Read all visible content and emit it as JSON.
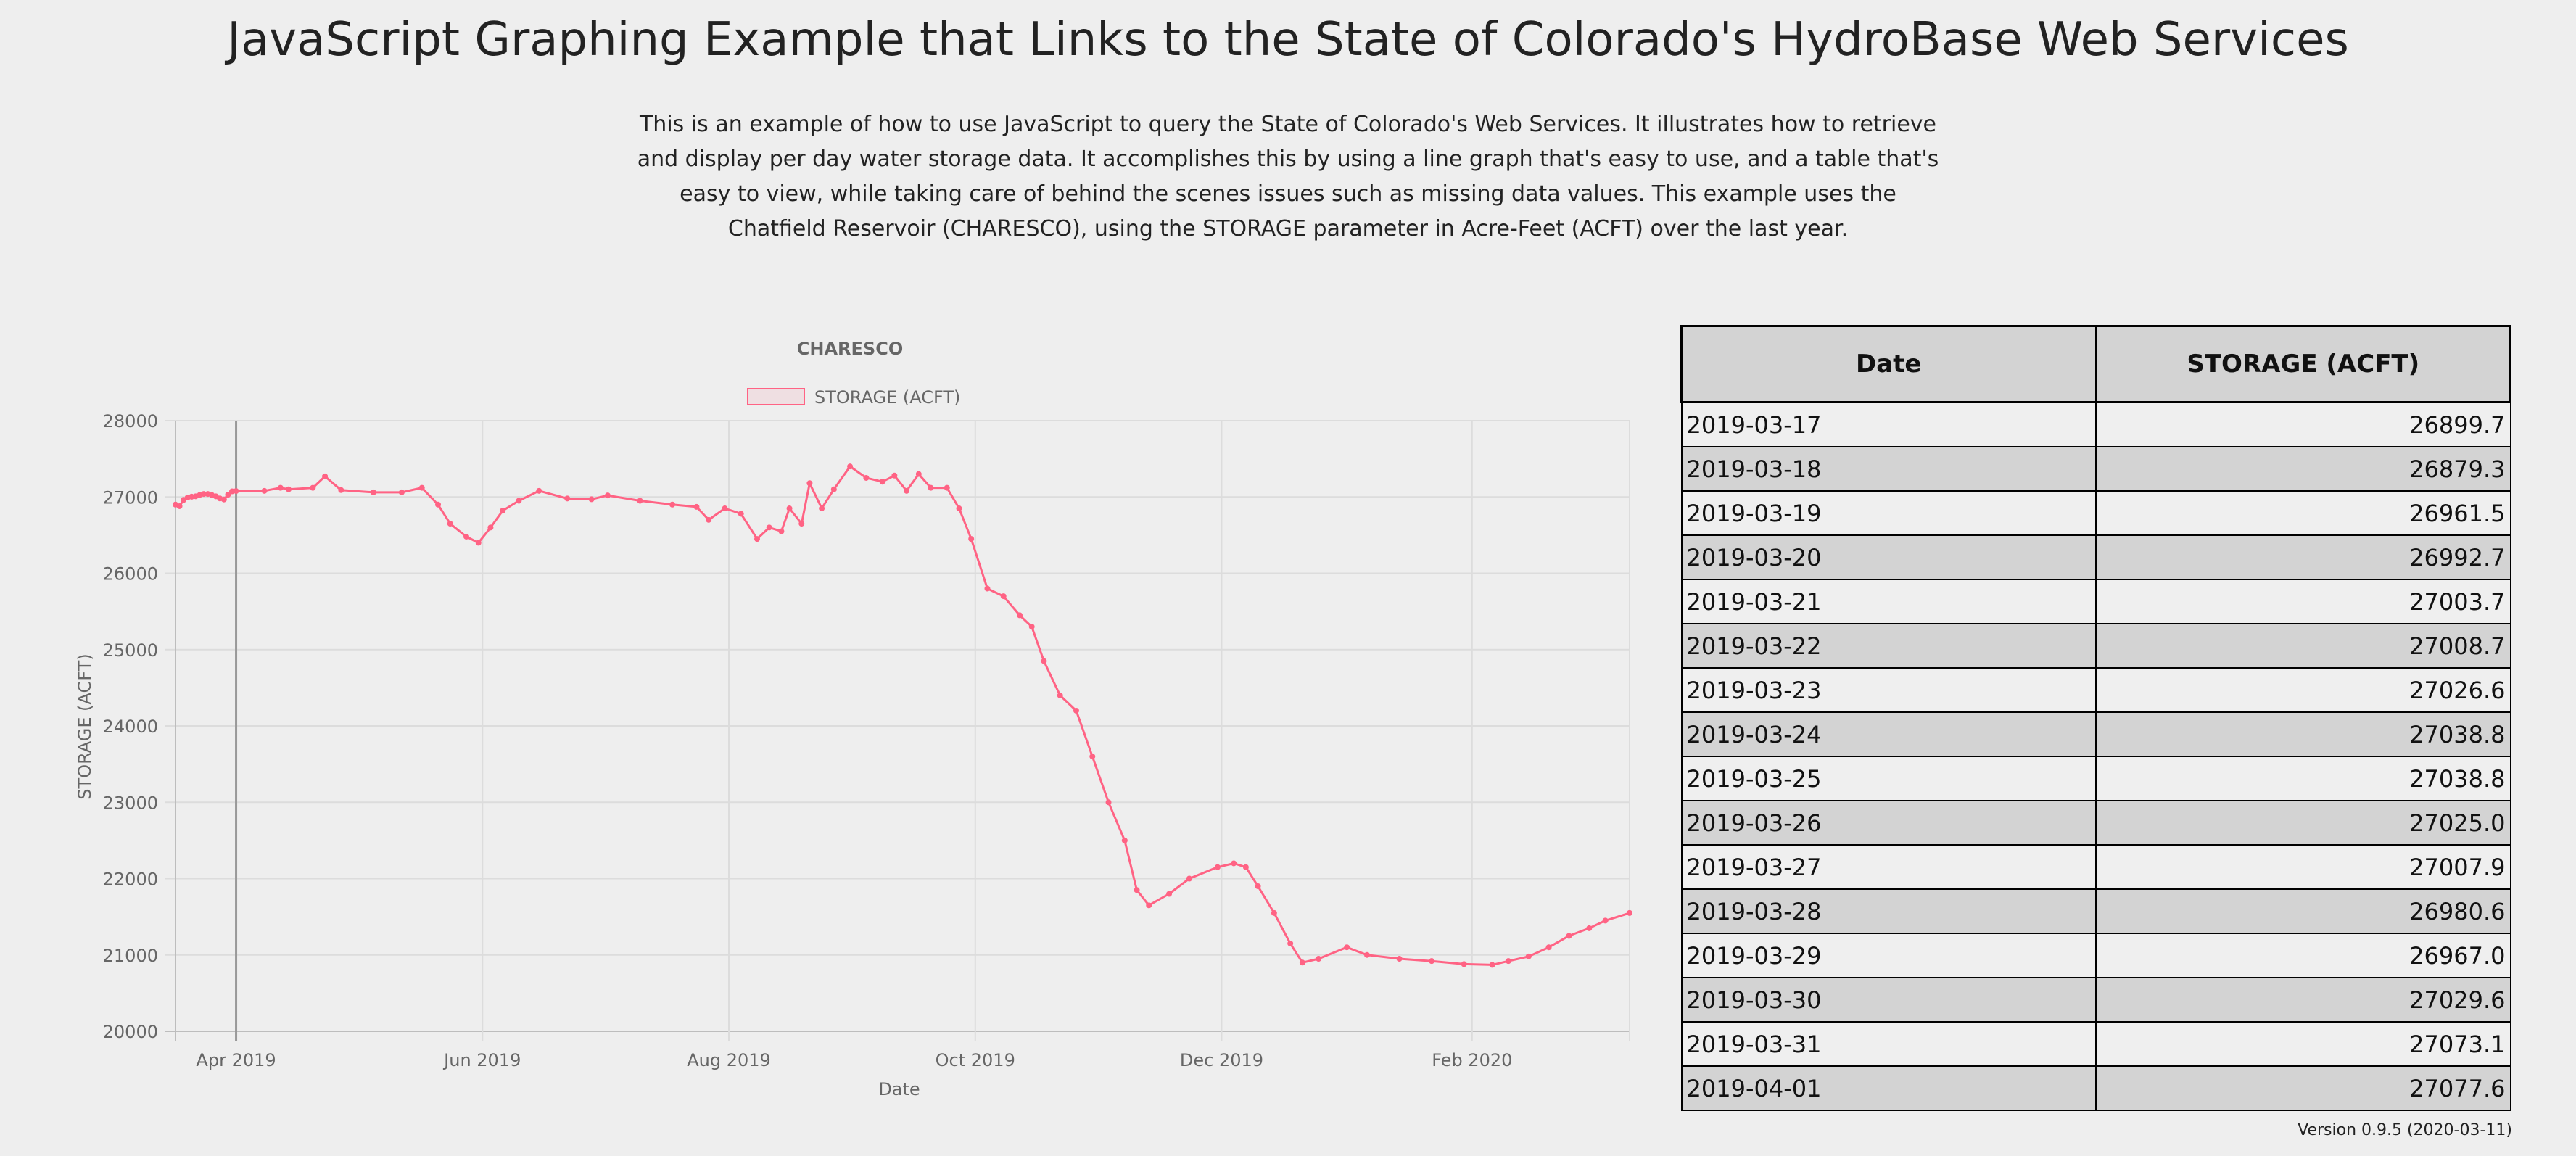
{
  "header": {
    "title": "JavaScript Graphing Example that Links to the State of Colorado's HydroBase Web Services",
    "description": "This is an example of how to use JavaScript to query the State of Colorado's Web Services. It illustrates how to retrieve and display per day water storage data. It accomplishes this by using a line graph that's easy to use, and a table that's easy to view, while taking care of behind the scenes issues such as missing data values. This example uses the Chatfield Reservoir (CHARESCO), using the STORAGE parameter in Acre-Feet (ACFT) over the last year."
  },
  "chart_data": {
    "type": "line",
    "title": "CHARESCO",
    "xlabel": "Date",
    "ylabel": "STORAGE (ACFT)",
    "ylim": [
      20000,
      28000
    ],
    "xlim": [
      "2019-03-17",
      "2020-03-11"
    ],
    "grid": true,
    "legend": "top",
    "x_ticks": [
      "Apr 2019",
      "Jun 2019",
      "Aug 2019",
      "Oct 2019",
      "Dec 2019",
      "Feb 2020"
    ],
    "y_ticks": [
      20000,
      21000,
      22000,
      23000,
      24000,
      25000,
      26000,
      27000,
      28000
    ],
    "line_color": "#ff6384",
    "series": [
      {
        "name": "STORAGE (ACFT)",
        "points": [
          [
            "2019-03-17",
            26899.7
          ],
          [
            "2019-03-18",
            26879.3
          ],
          [
            "2019-03-19",
            26961.5
          ],
          [
            "2019-03-20",
            26992.7
          ],
          [
            "2019-03-21",
            27003.7
          ],
          [
            "2019-03-22",
            27008.7
          ],
          [
            "2019-03-23",
            27026.6
          ],
          [
            "2019-03-24",
            27038.8
          ],
          [
            "2019-03-25",
            27038.8
          ],
          [
            "2019-03-26",
            27025.0
          ],
          [
            "2019-03-27",
            27007.9
          ],
          [
            "2019-03-28",
            26980.6
          ],
          [
            "2019-03-29",
            26967.0
          ],
          [
            "2019-03-30",
            27029.6
          ],
          [
            "2019-03-31",
            27073.1
          ],
          [
            "2019-04-01",
            27077.6
          ],
          [
            "2019-04-08",
            27080
          ],
          [
            "2019-04-12",
            27120
          ],
          [
            "2019-04-14",
            27100
          ],
          [
            "2019-04-20",
            27120
          ],
          [
            "2019-04-23",
            27270
          ],
          [
            "2019-04-27",
            27090
          ],
          [
            "2019-05-05",
            27060
          ],
          [
            "2019-05-12",
            27060
          ],
          [
            "2019-05-17",
            27120
          ],
          [
            "2019-05-21",
            26900
          ],
          [
            "2019-05-24",
            26650
          ],
          [
            "2019-05-28",
            26480
          ],
          [
            "2019-05-31",
            26400
          ],
          [
            "2019-06-03",
            26600
          ],
          [
            "2019-06-06",
            26820
          ],
          [
            "2019-06-10",
            26950
          ],
          [
            "2019-06-15",
            27080
          ],
          [
            "2019-06-22",
            26980
          ],
          [
            "2019-06-28",
            26970
          ],
          [
            "2019-07-02",
            27020
          ],
          [
            "2019-07-10",
            26950
          ],
          [
            "2019-07-18",
            26900
          ],
          [
            "2019-07-24",
            26870
          ],
          [
            "2019-07-27",
            26700
          ],
          [
            "2019-07-31",
            26850
          ],
          [
            "2019-08-04",
            26780
          ],
          [
            "2019-08-08",
            26450
          ],
          [
            "2019-08-11",
            26600
          ],
          [
            "2019-08-14",
            26550
          ],
          [
            "2019-08-16",
            26850
          ],
          [
            "2019-08-19",
            26650
          ],
          [
            "2019-08-21",
            27180
          ],
          [
            "2019-08-24",
            26850
          ],
          [
            "2019-08-27",
            27100
          ],
          [
            "2019-08-31",
            27400
          ],
          [
            "2019-09-04",
            27250
          ],
          [
            "2019-09-08",
            27200
          ],
          [
            "2019-09-11",
            27280
          ],
          [
            "2019-09-14",
            27080
          ],
          [
            "2019-09-17",
            27300
          ],
          [
            "2019-09-20",
            27120
          ],
          [
            "2019-09-24",
            27120
          ],
          [
            "2019-09-27",
            26850
          ],
          [
            "2019-09-30",
            26450
          ],
          [
            "2019-10-04",
            25800
          ],
          [
            "2019-10-08",
            25700
          ],
          [
            "2019-10-12",
            25450
          ],
          [
            "2019-10-15",
            25300
          ],
          [
            "2019-10-18",
            24850
          ],
          [
            "2019-10-22",
            24400
          ],
          [
            "2019-10-26",
            24200
          ],
          [
            "2019-10-30",
            23600
          ],
          [
            "2019-11-03",
            23000
          ],
          [
            "2019-11-07",
            22500
          ],
          [
            "2019-11-10",
            21850
          ],
          [
            "2019-11-13",
            21650
          ],
          [
            "2019-11-18",
            21800
          ],
          [
            "2019-11-23",
            22000
          ],
          [
            "2019-11-30",
            22150
          ],
          [
            "2019-12-04",
            22200
          ],
          [
            "2019-12-07",
            22150
          ],
          [
            "2019-12-10",
            21900
          ],
          [
            "2019-12-14",
            21550
          ],
          [
            "2019-12-18",
            21150
          ],
          [
            "2019-12-21",
            20900
          ],
          [
            "2019-12-25",
            20950
          ],
          [
            "2020-01-01",
            21100
          ],
          [
            "2020-01-06",
            21000
          ],
          [
            "2020-01-14",
            20950
          ],
          [
            "2020-01-22",
            20920
          ],
          [
            "2020-01-30",
            20880
          ],
          [
            "2020-02-06",
            20870
          ],
          [
            "2020-02-10",
            20920
          ],
          [
            "2020-02-15",
            20980
          ],
          [
            "2020-02-20",
            21100
          ],
          [
            "2020-02-25",
            21250
          ],
          [
            "2020-03-01",
            21350
          ],
          [
            "2020-03-05",
            21450
          ],
          [
            "2020-03-11",
            21550
          ]
        ]
      }
    ]
  },
  "table": {
    "headers": {
      "date": "Date",
      "value": "STORAGE (ACFT)"
    },
    "rows": [
      {
        "date": "2019-03-17",
        "value": "26899.7"
      },
      {
        "date": "2019-03-18",
        "value": "26879.3"
      },
      {
        "date": "2019-03-19",
        "value": "26961.5"
      },
      {
        "date": "2019-03-20",
        "value": "26992.7"
      },
      {
        "date": "2019-03-21",
        "value": "27003.7"
      },
      {
        "date": "2019-03-22",
        "value": "27008.7"
      },
      {
        "date": "2019-03-23",
        "value": "27026.6"
      },
      {
        "date": "2019-03-24",
        "value": "27038.8"
      },
      {
        "date": "2019-03-25",
        "value": "27038.8"
      },
      {
        "date": "2019-03-26",
        "value": "27025.0"
      },
      {
        "date": "2019-03-27",
        "value": "27007.9"
      },
      {
        "date": "2019-03-28",
        "value": "26980.6"
      },
      {
        "date": "2019-03-29",
        "value": "26967.0"
      },
      {
        "date": "2019-03-30",
        "value": "27029.6"
      },
      {
        "date": "2019-03-31",
        "value": "27073.1"
      },
      {
        "date": "2019-04-01",
        "value": "27077.6"
      }
    ]
  },
  "footer": {
    "version": "Version 0.9.5 (2020-03-11)"
  }
}
